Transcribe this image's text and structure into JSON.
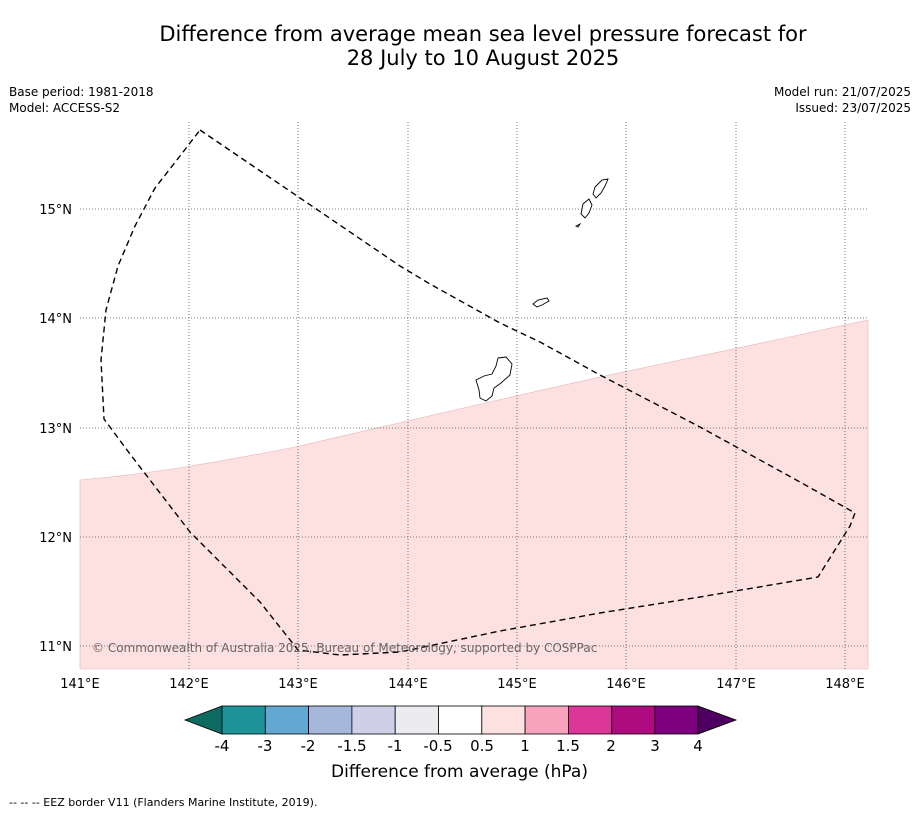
{
  "title": {
    "line1": "Difference from average mean sea level pressure forecast for",
    "line2": "28 July to 10 August 2025"
  },
  "meta_left": {
    "base_period": "Base period: 1981-2018",
    "model": "Model: ACCESS-S2"
  },
  "meta_right": {
    "model_run": "Model run: 21/07/2025",
    "issued": "Issued: 23/07/2025"
  },
  "map": {
    "lon_ticks": [
      "141°E",
      "142°E",
      "143°E",
      "144°E",
      "145°E",
      "146°E",
      "147°E",
      "148°E"
    ],
    "lat_ticks": [
      "11°N",
      "12°N",
      "13°N",
      "14°N",
      "15°N"
    ],
    "credit": "© Commonwealth of Australia 2025, Bureau of Meteorology, supported by COSPPac",
    "colors": {
      "anomaly_fill": "#fde0e0",
      "grid": "#555555",
      "eez": "#000000"
    }
  },
  "colorbar": {
    "tick_labels": [
      "-4",
      "-3",
      "-2",
      "-1.5",
      "-1",
      "-0.5",
      "0.5",
      "1",
      "1.5",
      "2",
      "3",
      "4"
    ],
    "colors": [
      "#0e6b62",
      "#1d9399",
      "#63a8d3",
      "#a5b8db",
      "#cfd0e8",
      "#ececf0",
      "#ffffff",
      "#fde0e0",
      "#f7a3be",
      "#dc3699",
      "#ae0b7f",
      "#7f007f",
      "#4d0060"
    ],
    "label": "Difference from average (hPa)"
  },
  "footnote": "--  --  -- EEZ border V11 (Flanders Marine Institute, 2019)."
}
